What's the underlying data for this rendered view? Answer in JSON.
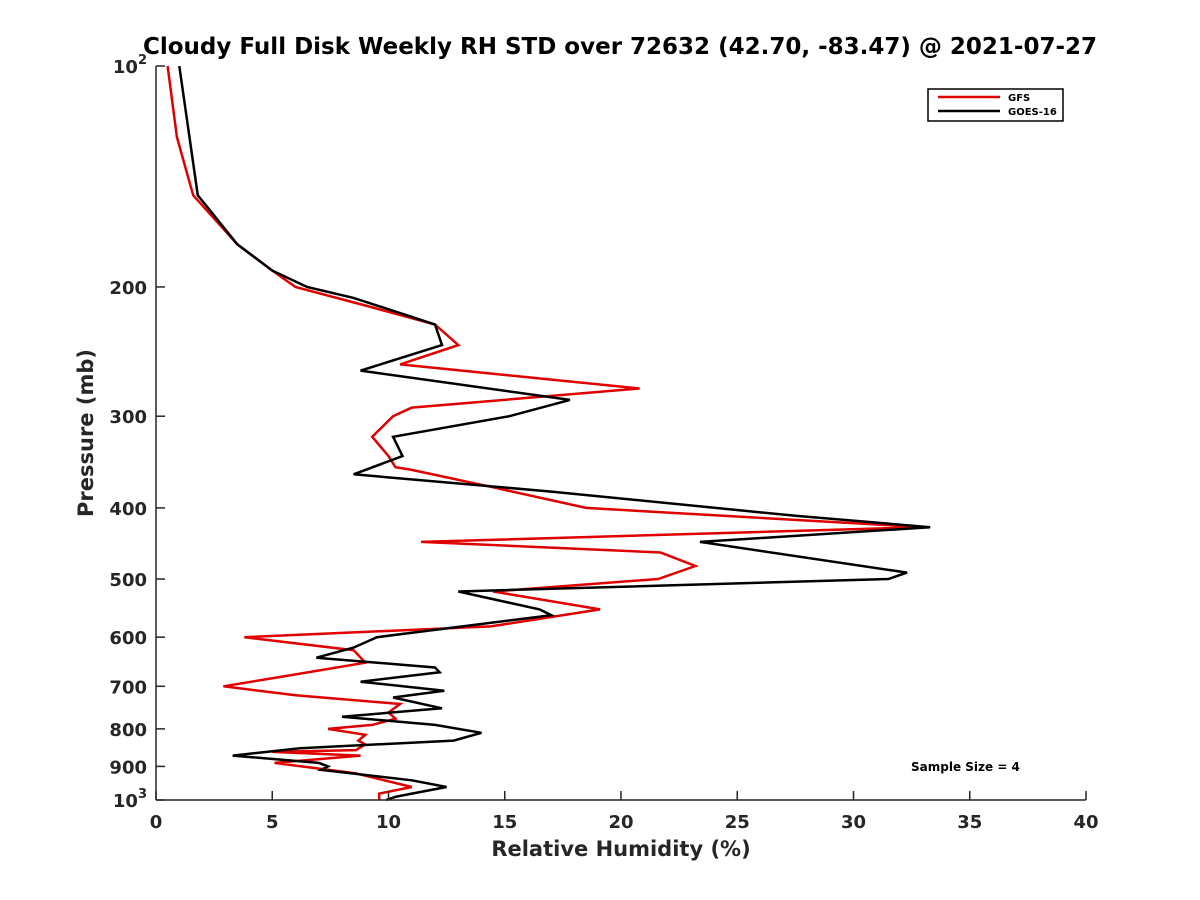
{
  "chart_data": {
    "type": "line",
    "title": "Cloudy Full Disk Weekly RH STD over 72632 (42.70, -83.47) @ 2021-07-27",
    "xlabel": "Relative Humidity (%)",
    "ylabel": "Pressure (mb)",
    "xlim": [
      0,
      40
    ],
    "ylim": [
      100,
      1000
    ],
    "yscale": "log",
    "yreversed": true,
    "grid": false,
    "legend_position": "top-right",
    "xticks": [
      0,
      5,
      10,
      15,
      20,
      25,
      30,
      35,
      40
    ],
    "yticks": [
      {
        "value": 100,
        "base": "10",
        "exp": "2"
      },
      {
        "value": 200,
        "label": "200"
      },
      {
        "value": 300,
        "label": "300"
      },
      {
        "value": 400,
        "label": "400"
      },
      {
        "value": 500,
        "label": "500"
      },
      {
        "value": 600,
        "label": "600"
      },
      {
        "value": 700,
        "label": "700"
      },
      {
        "value": 800,
        "label": "800"
      },
      {
        "value": 900,
        "label": "900"
      },
      {
        "value": 1000,
        "base": "10",
        "exp": "3"
      }
    ],
    "annotation": "Sample Size = 4",
    "series": [
      {
        "name": "GFS",
        "color": "#e00000",
        "points": [
          [
            0.5,
            100
          ],
          [
            0.9,
            125
          ],
          [
            1.6,
            150
          ],
          [
            3.5,
            175
          ],
          [
            5.0,
            190
          ],
          [
            6.0,
            200
          ],
          [
            9.0,
            212
          ],
          [
            12.0,
            225
          ],
          [
            13.0,
            240
          ],
          [
            10.5,
            255
          ],
          [
            20.8,
            275
          ],
          [
            11.0,
            292
          ],
          [
            10.2,
            300
          ],
          [
            9.3,
            320
          ],
          [
            10.0,
            340
          ],
          [
            10.3,
            352
          ],
          [
            11.0,
            355
          ],
          [
            14.5,
            375
          ],
          [
            18.5,
            400
          ],
          [
            33.0,
            425
          ],
          [
            11.4,
            445
          ],
          [
            21.7,
            460
          ],
          [
            23.2,
            480
          ],
          [
            21.6,
            500
          ],
          [
            14.5,
            520
          ],
          [
            19.1,
            550
          ],
          [
            14.4,
            580
          ],
          [
            3.8,
            600
          ],
          [
            8.5,
            625
          ],
          [
            9.0,
            650
          ],
          [
            5.3,
            680
          ],
          [
            2.9,
            700
          ],
          [
            6.0,
            720
          ],
          [
            10.5,
            740
          ],
          [
            10.0,
            760
          ],
          [
            10.3,
            775
          ],
          [
            9.3,
            790
          ],
          [
            7.4,
            800
          ],
          [
            9.0,
            815
          ],
          [
            8.7,
            830
          ],
          [
            9.0,
            840
          ],
          [
            8.6,
            855
          ],
          [
            5.0,
            860
          ],
          [
            8.8,
            870
          ],
          [
            5.1,
            890
          ],
          [
            8.6,
            920
          ],
          [
            11.0,
            960
          ],
          [
            9.6,
            980
          ],
          [
            9.6,
            1000
          ]
        ]
      },
      {
        "name": "GOES-16",
        "color": "#000000",
        "points": [
          [
            1.0,
            100
          ],
          [
            1.8,
            150
          ],
          [
            3.5,
            175
          ],
          [
            5.0,
            190
          ],
          [
            6.5,
            200
          ],
          [
            8.5,
            207
          ],
          [
            12.0,
            225
          ],
          [
            12.3,
            240
          ],
          [
            8.8,
            260
          ],
          [
            17.8,
            285
          ],
          [
            15.2,
            300
          ],
          [
            10.2,
            320
          ],
          [
            10.6,
            340
          ],
          [
            8.5,
            360
          ],
          [
            17.0,
            380
          ],
          [
            27.5,
            410
          ],
          [
            33.3,
            425
          ],
          [
            23.4,
            445
          ],
          [
            32.3,
            490
          ],
          [
            31.5,
            500
          ],
          [
            13.0,
            520
          ],
          [
            16.5,
            550
          ],
          [
            17.0,
            560
          ],
          [
            9.5,
            600
          ],
          [
            8.5,
            620
          ],
          [
            6.9,
            640
          ],
          [
            12.0,
            660
          ],
          [
            12.2,
            670
          ],
          [
            8.8,
            690
          ],
          [
            12.4,
            710
          ],
          [
            10.2,
            725
          ],
          [
            12.3,
            750
          ],
          [
            8.0,
            770
          ],
          [
            12.0,
            790
          ],
          [
            14.0,
            810
          ],
          [
            12.8,
            830
          ],
          [
            6.2,
            850
          ],
          [
            3.3,
            870
          ],
          [
            7.0,
            890
          ],
          [
            7.4,
            900
          ],
          [
            7.1,
            910
          ],
          [
            11.0,
            940
          ],
          [
            12.5,
            960
          ],
          [
            11.0,
            980
          ],
          [
            10.3,
            990
          ],
          [
            9.9,
            1000
          ]
        ]
      }
    ]
  }
}
